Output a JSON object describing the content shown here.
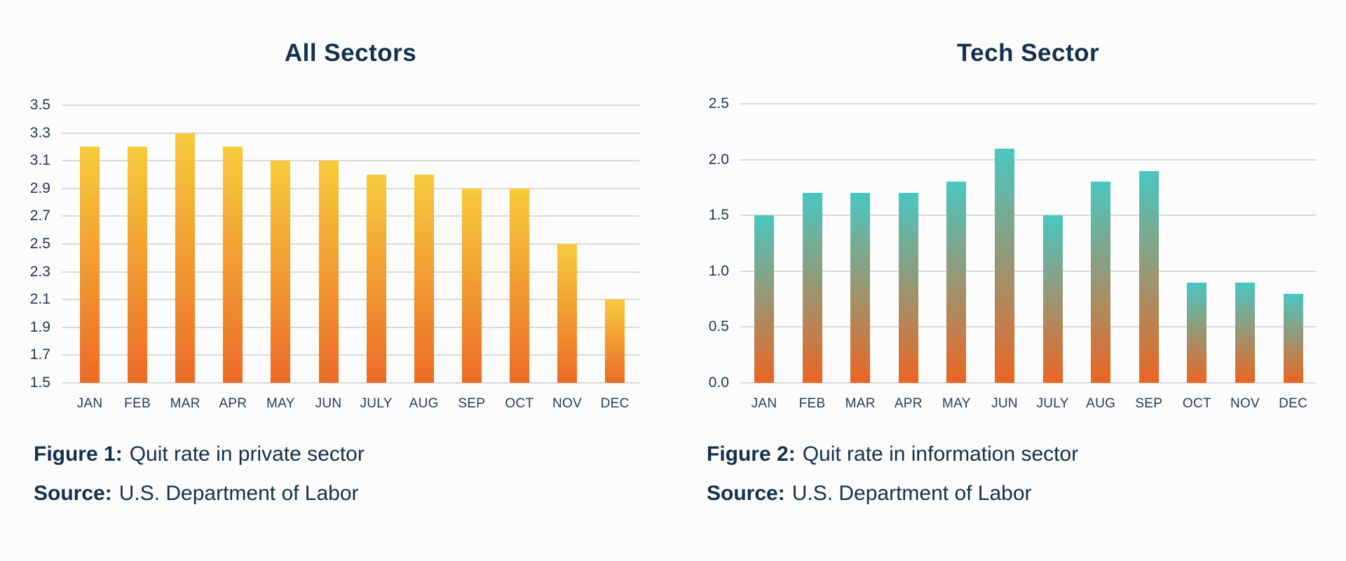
{
  "page": {
    "background_color": "#FCFCFC",
    "text_color": "#14304A",
    "gridline_color": "#DADADA"
  },
  "chart_data": [
    {
      "type": "bar",
      "title": "All Sectors",
      "categories": [
        "JAN",
        "FEB",
        "MAR",
        "APR",
        "MAY",
        "JUN",
        "JULY",
        "AUG",
        "SEP",
        "OCT",
        "NOV",
        "DEC"
      ],
      "values": [
        3.2,
        3.2,
        3.3,
        3.2,
        3.1,
        3.1,
        3.0,
        3.0,
        2.9,
        2.9,
        2.5,
        2.1
      ],
      "ylim": [
        1.5,
        3.5
      ],
      "y_tick_labels": [
        "3.5",
        "3.3",
        "3.1",
        "2.9",
        "2.7",
        "2.5",
        "2.3",
        "2.1",
        "1.9",
        "1.7",
        "1.5"
      ],
      "grid": true,
      "legend": false,
      "xlabel": "",
      "ylabel": "",
      "bar_color_top": "#F7CB3B",
      "bar_color_bottom": "#EC6B26",
      "caption_label": "Figure 1:",
      "caption_text": "Quit rate in private sector",
      "source_label": "Source:",
      "source_text": "U.S. Department of Labor"
    },
    {
      "type": "bar",
      "title": "Tech Sector",
      "categories": [
        "JAN",
        "FEB",
        "MAR",
        "APR",
        "MAY",
        "JUN",
        "JULY",
        "AUG",
        "SEP",
        "OCT",
        "NOV",
        "DEC"
      ],
      "values": [
        1.5,
        1.7,
        1.7,
        1.7,
        1.8,
        2.1,
        1.5,
        1.8,
        1.9,
        0.9,
        0.9,
        0.8
      ],
      "ylim": [
        0.0,
        2.5
      ],
      "y_tick_labels": [
        "2.5",
        "2.0",
        "1.5",
        "1.0",
        "0.5",
        "0.0"
      ],
      "grid": true,
      "legend": false,
      "xlabel": "",
      "ylabel": "",
      "bar_color_top": "#48C7C1",
      "bar_color_bottom": "#EB6523",
      "caption_label": "Figure 2:",
      "caption_text": "Quit rate in information sector",
      "source_label": "Source:",
      "source_text": "U.S. Department of Labor"
    }
  ]
}
